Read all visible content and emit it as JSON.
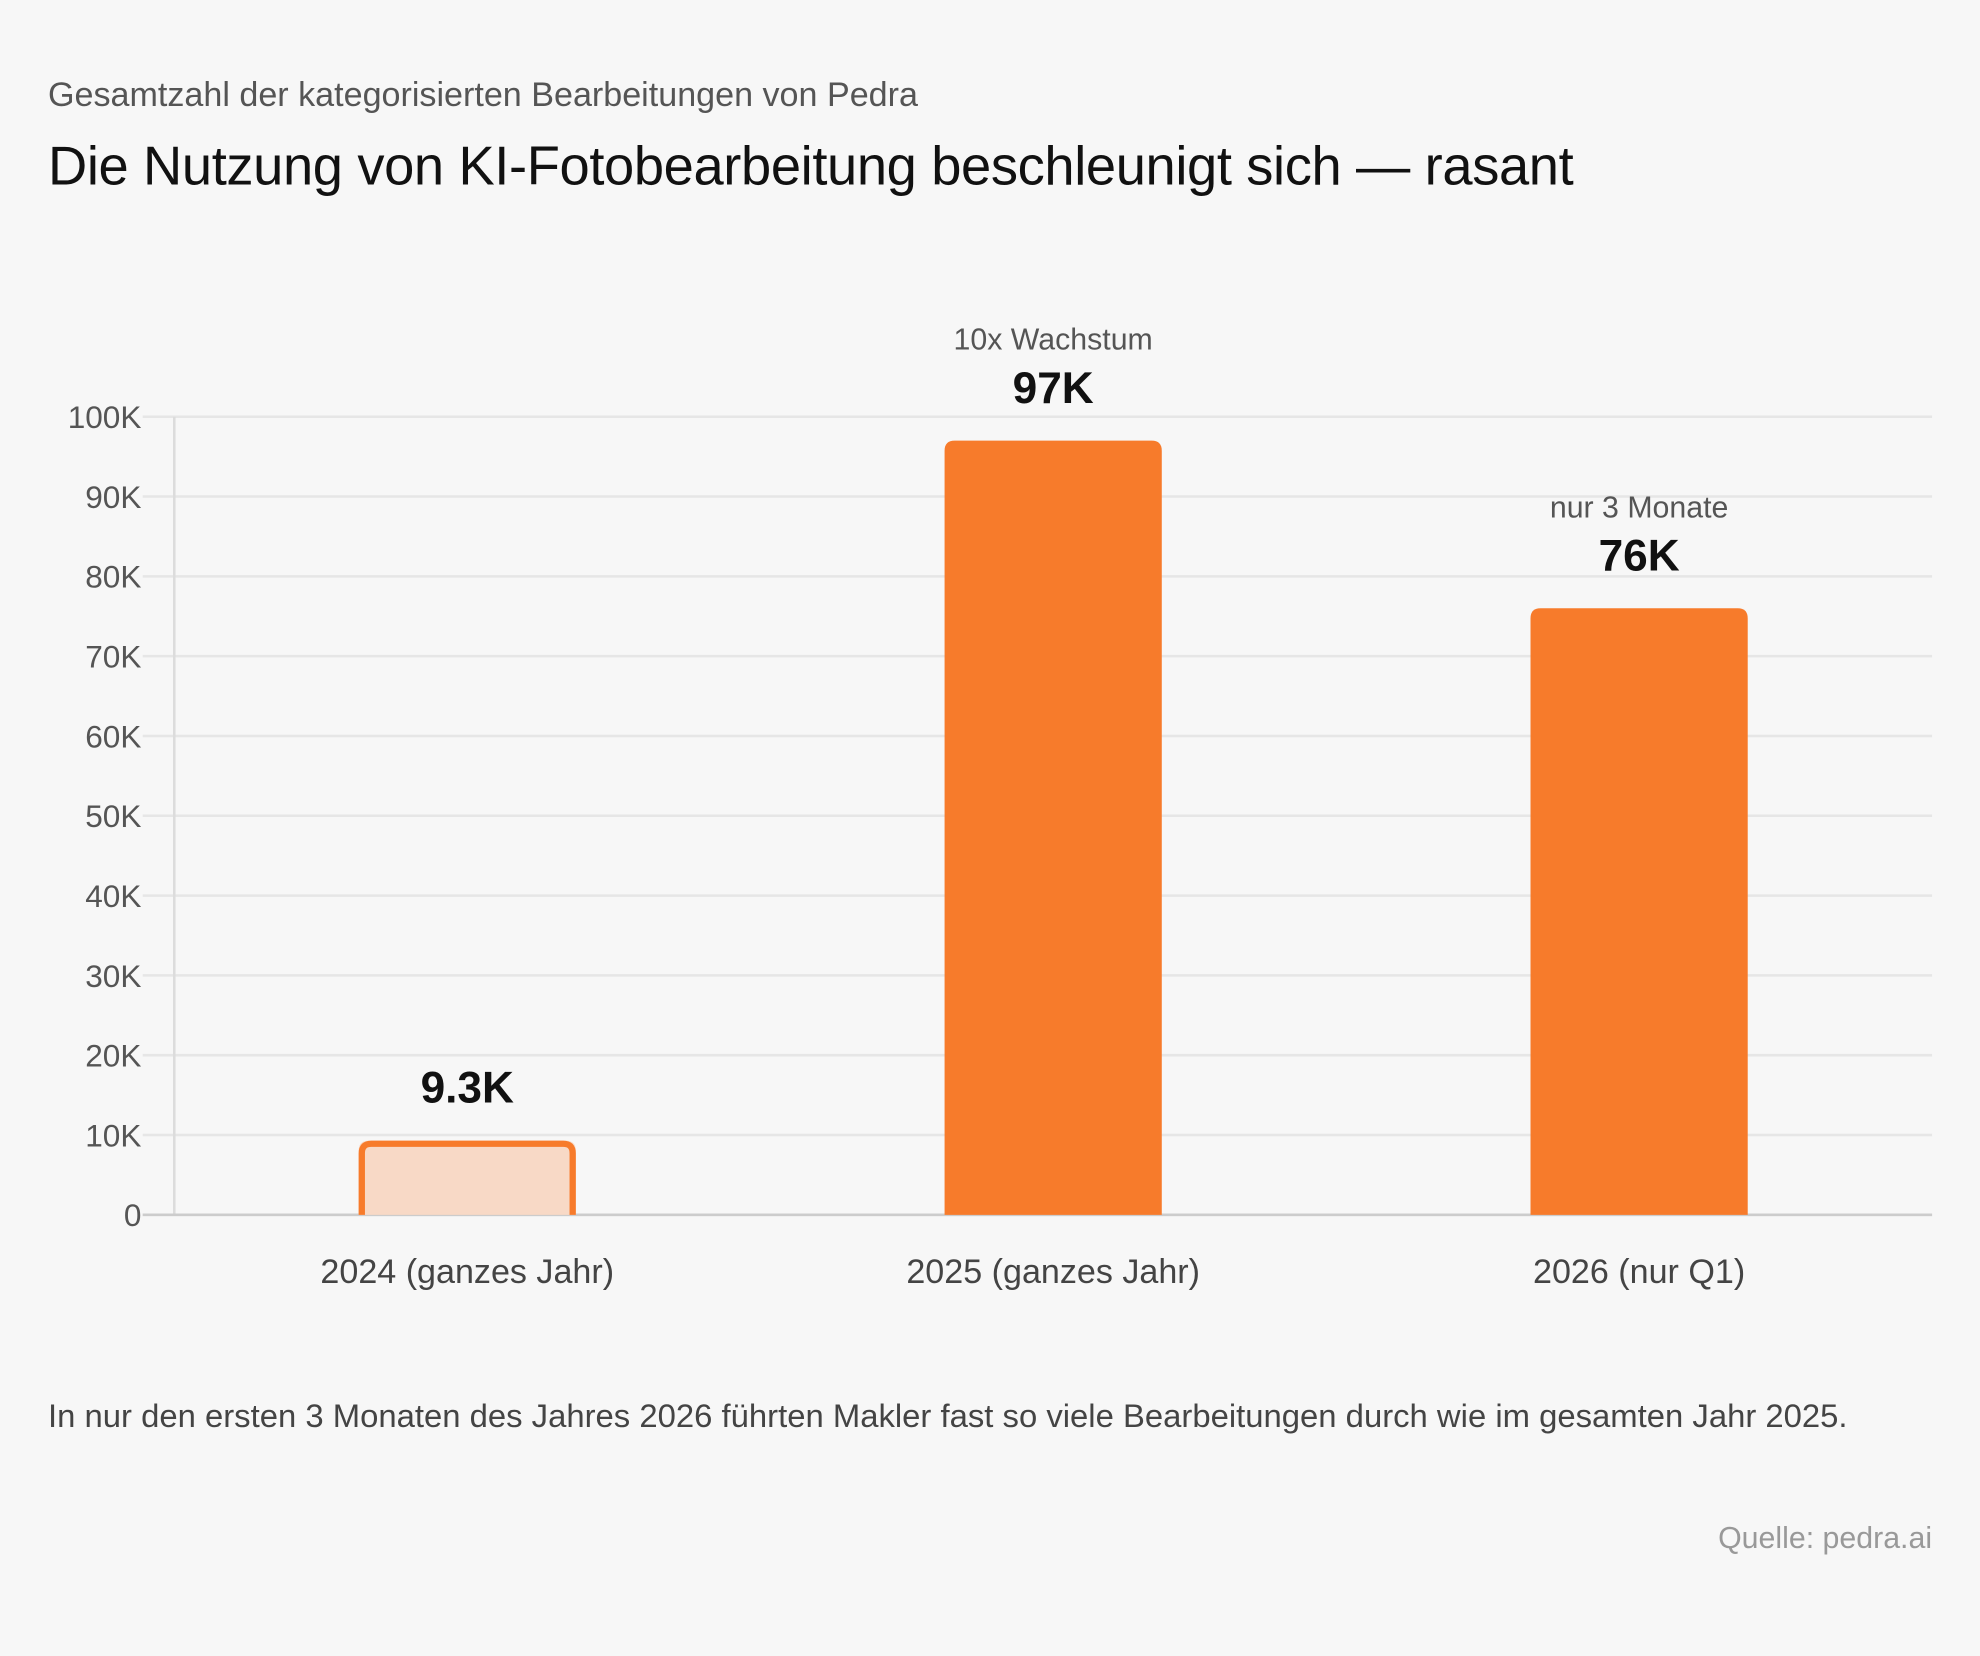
{
  "header": {
    "subtitle": "Gesamtzahl der kategorisierten Bearbeitungen von Pedra",
    "title": "Die Nutzung von KI-Fotobearbeitung beschleunigt sich — rasant"
  },
  "chart_data": {
    "type": "bar",
    "categories": [
      "2024 (ganzes Jahr)",
      "2025 (ganzes Jahr)",
      "2026 (nur Q1)"
    ],
    "values": [
      9300,
      97000,
      76000
    ],
    "data_labels": [
      "9.3K",
      "97K",
      "76K"
    ],
    "annotations": [
      "",
      "10x Wachstum",
      "nur 3 Monate"
    ],
    "ylim": [
      0,
      100000
    ],
    "yticks": [
      0,
      10000,
      20000,
      30000,
      40000,
      50000,
      60000,
      70000,
      80000,
      90000,
      100000
    ],
    "ytick_labels": [
      "0",
      "10K",
      "20K",
      "30K",
      "40K",
      "50K",
      "60K",
      "70K",
      "80K",
      "90K",
      "100K"
    ],
    "grid": true,
    "colors": {
      "highlight": "#F77B2B",
      "muted_fill": "#F8D9C6",
      "muted_stroke": "#F77B2B"
    }
  },
  "footer": {
    "note": "In nur den ersten 3 Monaten des Jahres 2026 führten Makler fast so viele Bearbeitungen durch wie im gesamten Jahr 2025.",
    "source": "Quelle: pedra.ai"
  }
}
